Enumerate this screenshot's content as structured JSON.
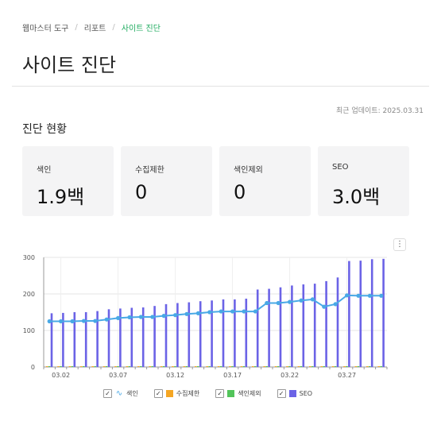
{
  "breadcrumb": {
    "items": [
      "웹마스터 도구",
      "리포트"
    ],
    "current": "사이트 진단"
  },
  "page_title": "사이트 진단",
  "updated_label": "최근 업데이트: 2025.03.31",
  "section_title": "진단 현황",
  "cards": [
    {
      "label": "색인",
      "value": "1.9백"
    },
    {
      "label": "수집제한",
      "value": "0"
    },
    {
      "label": "색인제외",
      "value": "0"
    },
    {
      "label": "SEO",
      "value": "3.0백"
    }
  ],
  "menu_icon": "kebab-menu-icon",
  "chart_data": {
    "type": "bar",
    "x": [
      "03.01",
      "03.02",
      "03.03",
      "03.04",
      "03.05",
      "03.06",
      "03.07",
      "03.08",
      "03.09",
      "03.10",
      "03.11",
      "03.12",
      "03.13",
      "03.14",
      "03.15",
      "03.16",
      "03.17",
      "03.18",
      "03.19",
      "03.20",
      "03.21",
      "03.22",
      "03.23",
      "03.24",
      "03.25",
      "03.26",
      "03.27",
      "03.28",
      "03.29",
      "03.30"
    ],
    "tick_labels": [
      "03.02",
      "03.07",
      "03.12",
      "03.17",
      "03.22",
      "03.27"
    ],
    "yticks": [
      0,
      100,
      200,
      300
    ],
    "ylim": [
      0,
      300
    ],
    "series": [
      {
        "name": "색인",
        "type": "line",
        "color": "#49a9e6",
        "values": [
          125,
          125,
          125,
          126,
          126,
          130,
          134,
          136,
          137,
          137,
          140,
          142,
          145,
          147,
          150,
          152,
          152,
          152,
          152,
          175,
          175,
          178,
          182,
          185,
          165,
          172,
          196,
          195,
          195,
          195
        ]
      },
      {
        "name": "수집제한",
        "type": "bar",
        "color": "#f5a623",
        "values": [
          0,
          0,
          0,
          0,
          0,
          0,
          0,
          0,
          0,
          0,
          0,
          0,
          0,
          0,
          0,
          0,
          0,
          0,
          0,
          0,
          0,
          0,
          0,
          0,
          0,
          0,
          0,
          0,
          0,
          0
        ]
      },
      {
        "name": "색인제외",
        "type": "bar",
        "color": "#52c45a",
        "values": [
          0,
          0,
          0,
          0,
          0,
          0,
          0,
          0,
          0,
          0,
          0,
          0,
          0,
          0,
          0,
          0,
          0,
          0,
          0,
          0,
          0,
          0,
          0,
          0,
          0,
          0,
          0,
          0,
          0,
          0
        ]
      },
      {
        "name": "SEO",
        "type": "bar",
        "color": "#6b63e6",
        "values": [
          147,
          148,
          150,
          150,
          153,
          158,
          160,
          162,
          163,
          167,
          172,
          175,
          177,
          180,
          182,
          185,
          185,
          187,
          212,
          214,
          218,
          223,
          226,
          228,
          235,
          245,
          290,
          291,
          295,
          296
        ]
      }
    ]
  },
  "legend": [
    {
      "label": "색인",
      "checked": "✓",
      "color": "#49a9e6",
      "kind": "line",
      "glyph": "∿"
    },
    {
      "label": "수집제한",
      "checked": "✓",
      "color": "#f5a623",
      "kind": "bar"
    },
    {
      "label": "색인제외",
      "checked": "✓",
      "color": "#52c45a",
      "kind": "bar"
    },
    {
      "label": "SEO",
      "checked": "✓",
      "color": "#6b63e6",
      "kind": "bar"
    }
  ]
}
